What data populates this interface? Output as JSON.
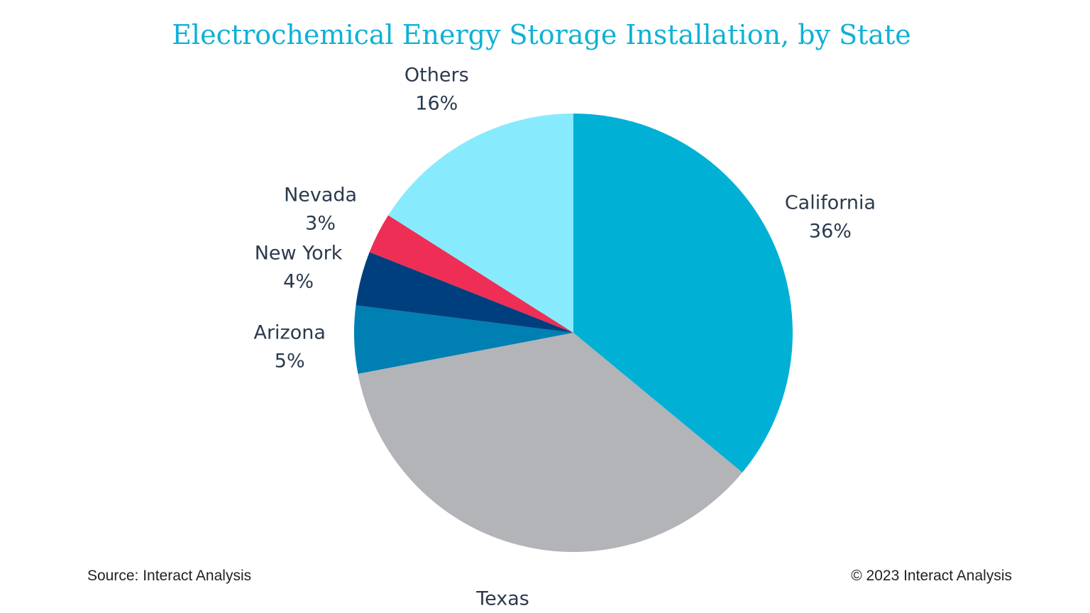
{
  "chart_data": {
    "type": "pie",
    "title": "Electrochemical Energy Storage Installation, by State",
    "start_angle_deg": 0,
    "direction": "clockwise",
    "slices": [
      {
        "label": "California",
        "value_label": "36%",
        "value": 36,
        "color": "#00b0d5"
      },
      {
        "label": "Texas",
        "value_label": "36%",
        "value": 36,
        "color": "#b2b4b7"
      },
      {
        "label": "Arizona",
        "value_label": "5%",
        "value": 5,
        "color": "#007fb2"
      },
      {
        "label": "New York",
        "value_label": "4%",
        "value": 4,
        "color": "#003f7d"
      },
      {
        "label": "Nevada",
        "value_label": "3%",
        "value": 3,
        "color": "#ee2e55"
      },
      {
        "label": "Others",
        "value_label": "16%",
        "value": 16,
        "color": "#87ebfd"
      }
    ]
  },
  "footer": {
    "source": "Source: Interact Analysis",
    "copyright": "© 2023 Interact Analysis"
  }
}
